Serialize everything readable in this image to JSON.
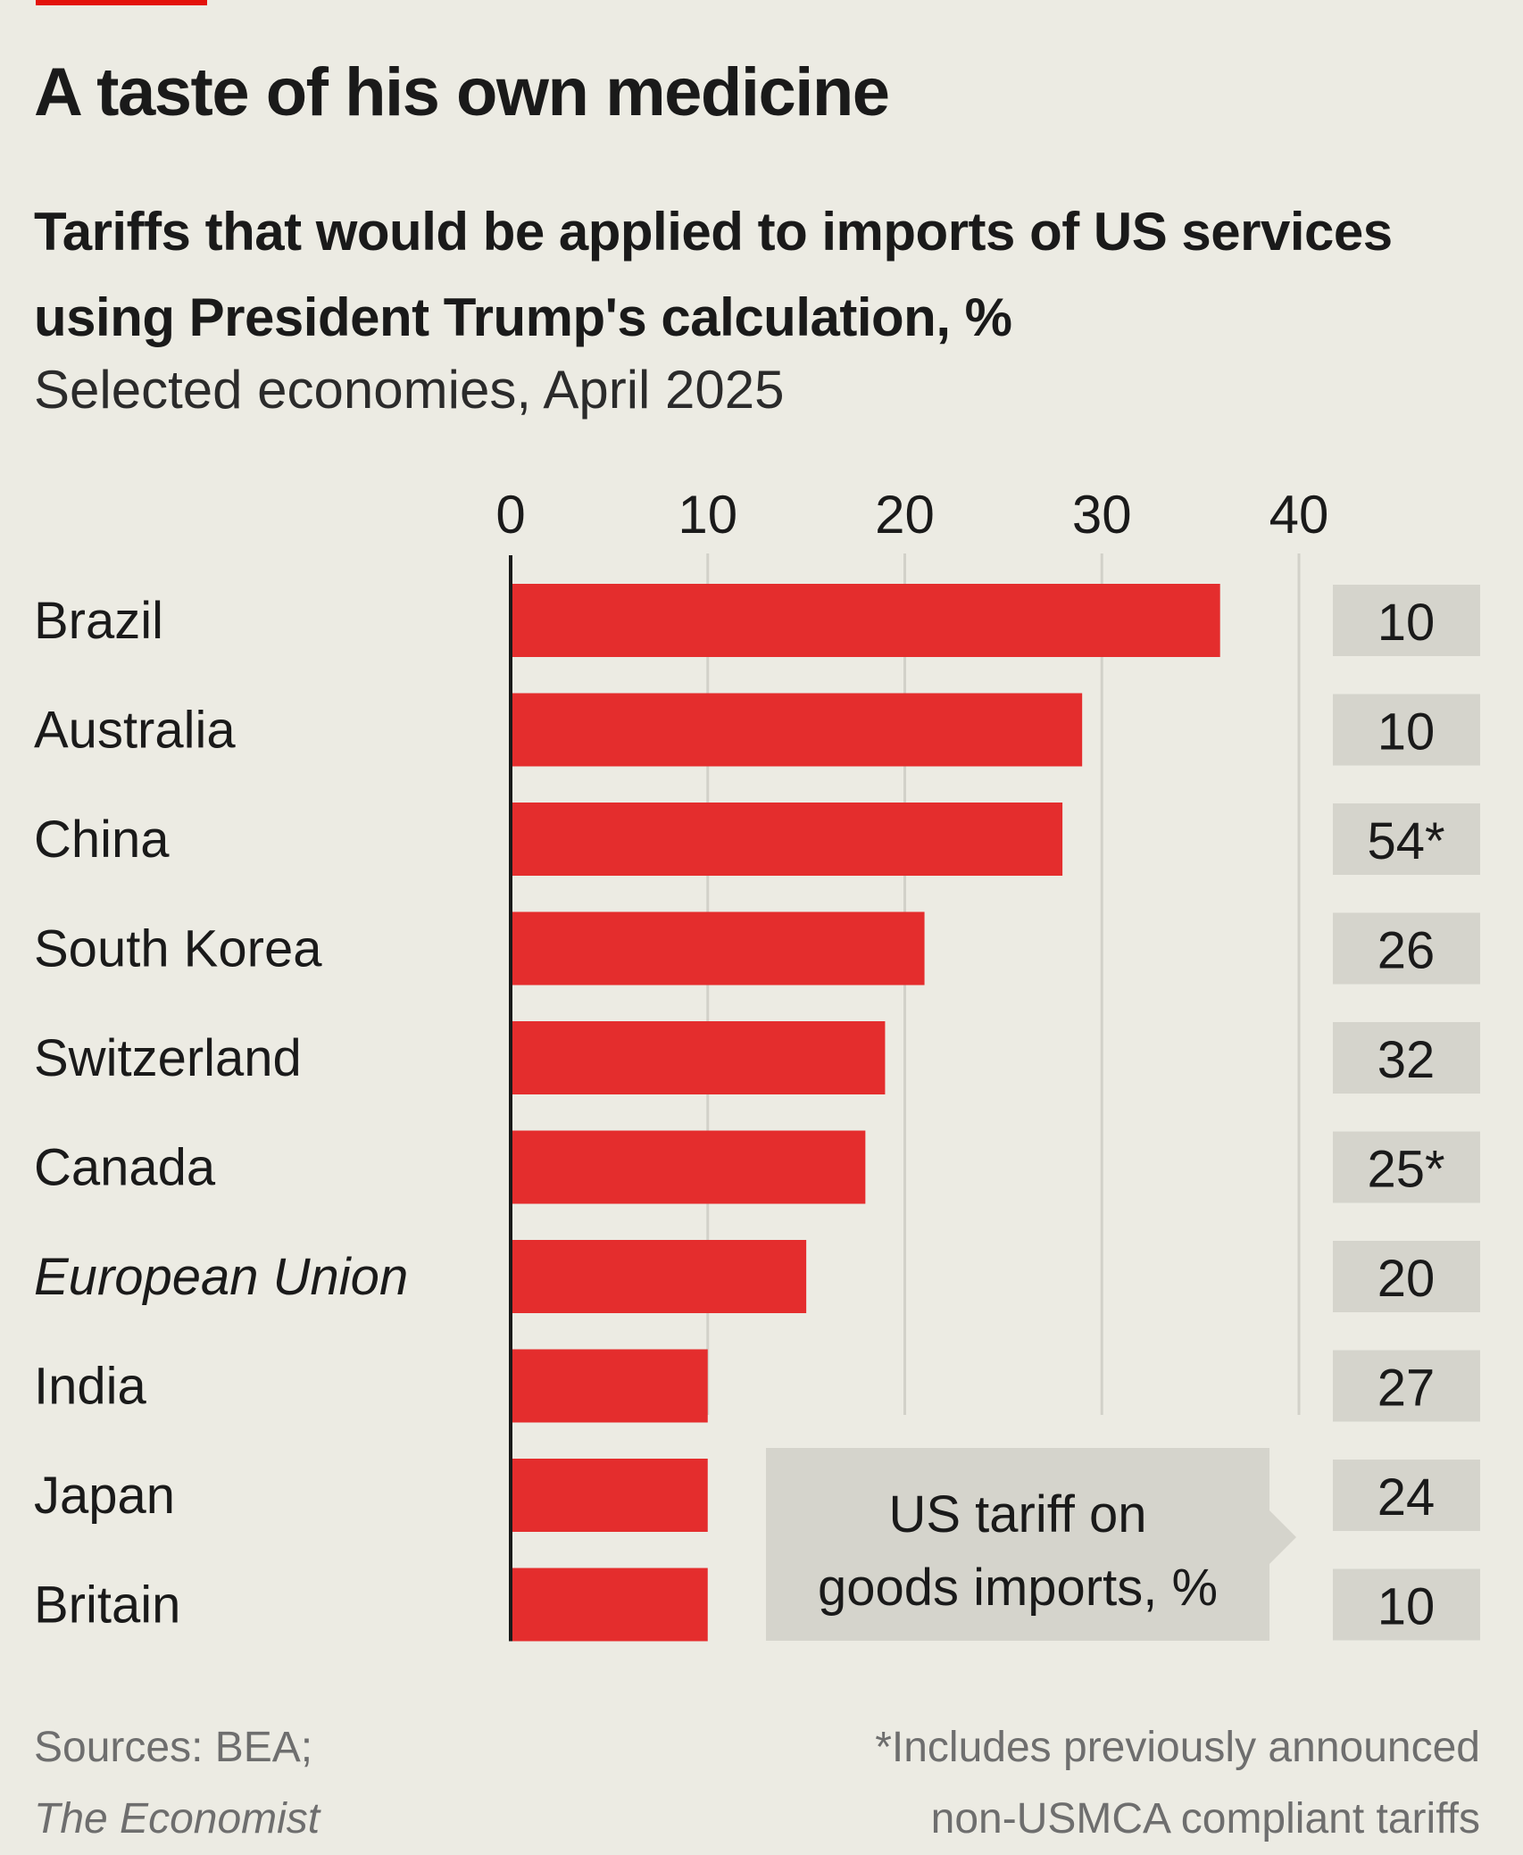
{
  "chart_data": {
    "type": "bar",
    "orientation": "horizontal",
    "title": "A taste of his own medicine",
    "subtitle": "Tariffs that would be applied to imports of US services using President Trump's calculation, %",
    "subtitle2": "Selected economies, April 2025",
    "xlim": [
      0,
      40
    ],
    "ticks": [
      0,
      10,
      20,
      30,
      40
    ],
    "categories": [
      "Brazil",
      "Australia",
      "China",
      "South Korea",
      "Switzerland",
      "Canada",
      "European Union",
      "India",
      "Japan",
      "Britain"
    ],
    "italic_categories": [
      "European Union"
    ],
    "values": [
      36,
      29,
      28,
      21,
      19,
      18,
      15,
      10,
      10,
      10
    ],
    "goods_tariff_labels": [
      "10",
      "10",
      "54*",
      "26",
      "32",
      "25*",
      "20",
      "27",
      "24",
      "10"
    ],
    "goods_tariff_legend": [
      "US tariff on",
      "goods imports, %"
    ],
    "bar_color": "#e42d2d",
    "label_box_color": "#d5d4cc",
    "grid": true
  },
  "footer": {
    "sources_line1": "Sources: BEA;",
    "sources_line2": "The Economist",
    "note_line1": "*Includes previously announced",
    "note_line2": "non-USMCA compliant tariffs"
  }
}
